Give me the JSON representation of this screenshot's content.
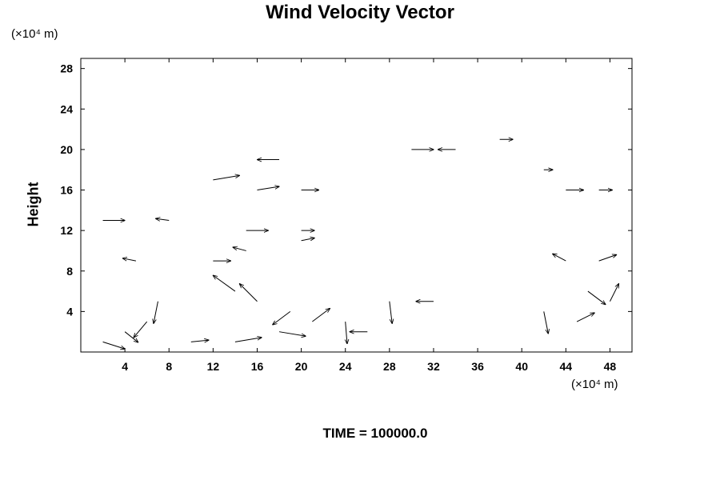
{
  "chart_data": {
    "type": "vector-field",
    "title": "Wind Velocity Vector",
    "ylabel": "Height",
    "x_unit_label": "(×10⁴ m)",
    "y_unit_label": "(×10⁴ m)",
    "footer": "TIME = 100000.0",
    "xlim": [
      0,
      50
    ],
    "ylim": [
      0,
      29
    ],
    "x_ticks": [
      4,
      8,
      12,
      16,
      20,
      24,
      28,
      32,
      36,
      40,
      44,
      48
    ],
    "y_ticks": [
      4,
      8,
      12,
      16,
      20,
      24,
      28
    ],
    "grid": false,
    "vectors": [
      {
        "x": 2,
        "y": 1,
        "u": 2.5,
        "v": -0.8
      },
      {
        "x": 4,
        "y": 2,
        "u": 1.5,
        "v": -1.2
      },
      {
        "x": 6,
        "y": 3,
        "u": -1.5,
        "v": -1.8
      },
      {
        "x": 7,
        "y": 5,
        "u": -0.5,
        "v": -2.5
      },
      {
        "x": 10,
        "y": 1,
        "u": 2.0,
        "v": 0.2
      },
      {
        "x": 14,
        "y": 1,
        "u": 3.0,
        "v": 0.5
      },
      {
        "x": 14,
        "y": 6,
        "u": -2.5,
        "v": 1.8
      },
      {
        "x": 16,
        "y": 5,
        "u": -2.0,
        "v": 2.0
      },
      {
        "x": 18,
        "y": 2,
        "u": 3.0,
        "v": -0.5
      },
      {
        "x": 19,
        "y": 4,
        "u": -2.0,
        "v": -1.5
      },
      {
        "x": 21,
        "y": 3,
        "u": 2.0,
        "v": 1.5
      },
      {
        "x": 24,
        "y": 3,
        "u": 0.2,
        "v": -2.5
      },
      {
        "x": 26,
        "y": 2,
        "u": -2.0,
        "v": 0.0
      },
      {
        "x": 28,
        "y": 5,
        "u": 0.3,
        "v": -2.5
      },
      {
        "x": 32,
        "y": 5,
        "u": -2.0,
        "v": 0.0
      },
      {
        "x": 42,
        "y": 4,
        "u": 0.5,
        "v": -2.5
      },
      {
        "x": 45,
        "y": 3,
        "u": 2.0,
        "v": 1.0
      },
      {
        "x": 46,
        "y": 6,
        "u": 2.0,
        "v": -1.5
      },
      {
        "x": 48,
        "y": 5,
        "u": 1.0,
        "v": 2.0
      },
      {
        "x": 5,
        "y": 9,
        "u": -1.5,
        "v": 0.3
      },
      {
        "x": 12,
        "y": 9,
        "u": 2.0,
        "v": 0.0
      },
      {
        "x": 15,
        "y": 10,
        "u": -1.5,
        "v": 0.4
      },
      {
        "x": 20,
        "y": 11,
        "u": 1.5,
        "v": 0.3
      },
      {
        "x": 44,
        "y": 9,
        "u": -1.5,
        "v": 0.8
      },
      {
        "x": 47,
        "y": 9,
        "u": 2.0,
        "v": 0.7
      },
      {
        "x": 2,
        "y": 13,
        "u": 2.5,
        "v": 0.0
      },
      {
        "x": 8,
        "y": 13,
        "u": -1.5,
        "v": 0.2
      },
      {
        "x": 15,
        "y": 12,
        "u": 2.5,
        "v": 0.0
      },
      {
        "x": 20,
        "y": 12,
        "u": 1.5,
        "v": 0.0
      },
      {
        "x": 12,
        "y": 17,
        "u": 3.0,
        "v": 0.5
      },
      {
        "x": 16,
        "y": 16,
        "u": 2.5,
        "v": 0.4
      },
      {
        "x": 20,
        "y": 16,
        "u": 2.0,
        "v": 0.0
      },
      {
        "x": 18,
        "y": 19,
        "u": -2.5,
        "v": 0.0
      },
      {
        "x": 30,
        "y": 20,
        "u": 2.5,
        "v": 0.0
      },
      {
        "x": 34,
        "y": 20,
        "u": -2.0,
        "v": 0.0
      },
      {
        "x": 38,
        "y": 21,
        "u": 1.5,
        "v": 0.0
      },
      {
        "x": 44,
        "y": 16,
        "u": 2.0,
        "v": 0.0
      },
      {
        "x": 47,
        "y": 16,
        "u": 1.5,
        "v": 0.0
      },
      {
        "x": 42,
        "y": 18,
        "u": 1.0,
        "v": 0.0
      }
    ]
  }
}
